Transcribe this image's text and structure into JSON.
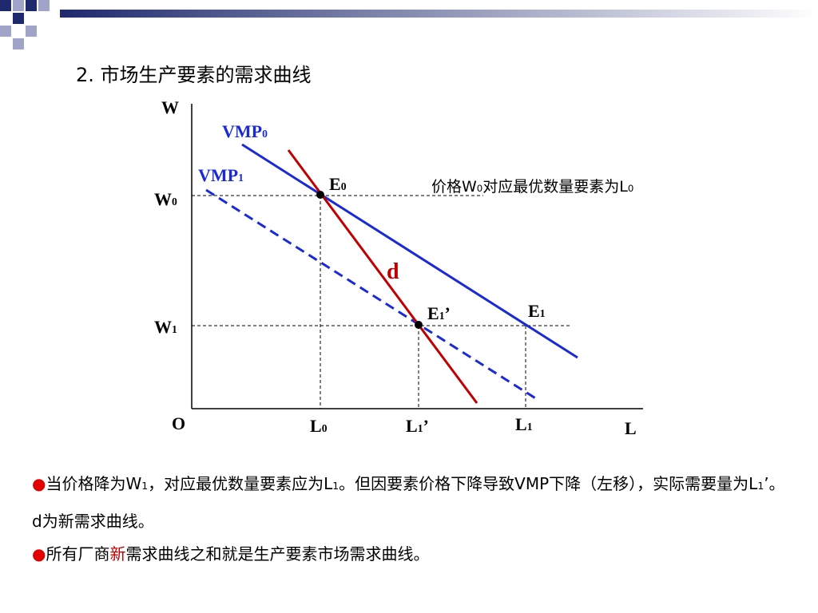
{
  "title": "2. 市场生产要素的需求曲线",
  "diagram": {
    "axis_y": "W",
    "axis_x": "L",
    "origin": "O",
    "w0": {
      "main": "W",
      "sub": "0"
    },
    "w1": {
      "main": "W",
      "sub": "1"
    },
    "l0": {
      "main": "L",
      "sub": "0"
    },
    "l1_prime": {
      "main": "L",
      "sub": "1",
      "suffix": "’"
    },
    "l1": {
      "main": "L",
      "sub": "1"
    },
    "vmp0": {
      "main": "VMP",
      "sub": "0"
    },
    "vmp1": {
      "main": "VMP",
      "sub": "1"
    },
    "e0": {
      "main": "E",
      "sub": "0"
    },
    "e1_prime": {
      "main": "E",
      "sub": "1",
      "suffix": "’"
    },
    "e1": {
      "main": "E",
      "sub": "1"
    },
    "d": "d",
    "note": [
      "价格W",
      "0",
      "对应最优数量要素为L",
      "0"
    ]
  },
  "bullets": [
    [
      "当价格降为W",
      "1",
      "，对应最优数量要素应为L",
      "1",
      "。但因要素价格下降导致VMP下降（左移），实际需要量为L",
      "1",
      "’。d为新需求曲线。"
    ],
    [
      "所有厂商",
      "新",
      "需求曲线之和就是生产要素市场需求曲线。"
    ]
  ]
}
